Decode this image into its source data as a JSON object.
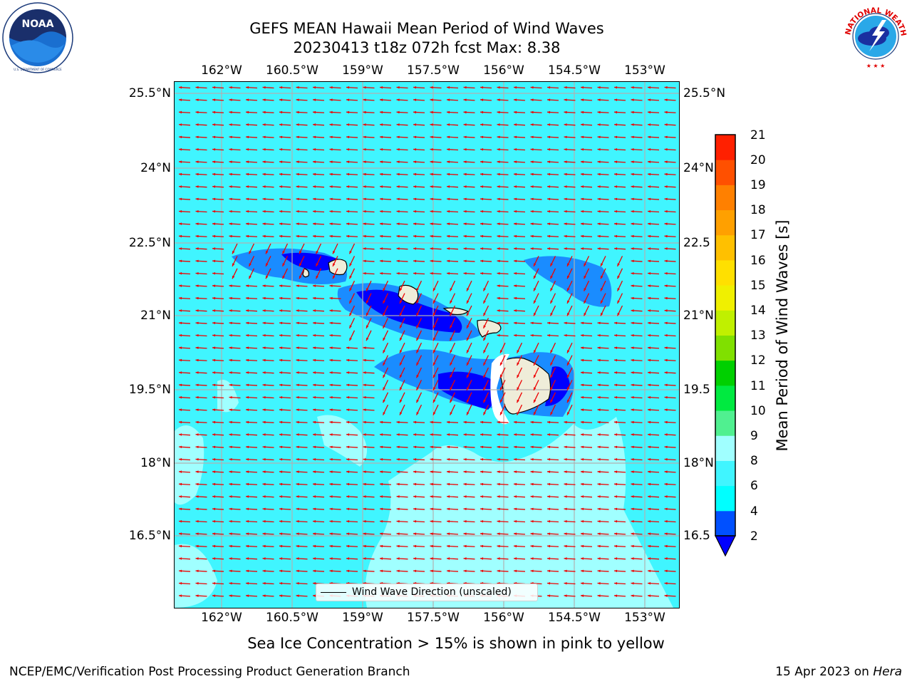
{
  "title": {
    "line1": "GEFS MEAN Hawaii Mean Period of Wind Waves",
    "line2": "20230413 t18z 072h fcst   Max: 8.38"
  },
  "logos": {
    "noaa": {
      "text": "NOAA",
      "icon": "noaa-logo-icon",
      "ring_text": "NATIONAL OCEANIC AND ATMOSPHERIC ADMINISTRATION · U.S. DEPARTMENT OF COMMERCE"
    },
    "nws": {
      "icon": "nws-logo-icon",
      "ring_text": "NATIONAL WEATHER SERVICE"
    }
  },
  "map": {
    "lon_ticks": [
      "162°W",
      "160.5°W",
      "159°W",
      "157.5°W",
      "156°W",
      "154.5°W",
      "153°W"
    ],
    "lon_values": [
      -162,
      -160.5,
      -159,
      -157.5,
      -156,
      -154.5,
      -153
    ],
    "lat_ticks_left": [
      "25.5°N",
      "24°N",
      "22.5°N",
      "21°N",
      "19.5°N",
      "18°N",
      "16.5°N"
    ],
    "lat_ticks_right": [
      "25.5°N",
      "24°N",
      "22.5",
      "21°N",
      "19.5",
      "18°N",
      "16.5"
    ],
    "lat_values": [
      25.5,
      24,
      22.5,
      21,
      19.5,
      18,
      16.5
    ],
    "extent": {
      "lon_min": -163,
      "lon_max": -152.25,
      "lat_min": 15,
      "lat_max": 25.75
    },
    "gridlines": true,
    "arrow_color": "#ee0000",
    "coast_color": "#000000",
    "land_color": "#efedd9"
  },
  "legend": {
    "label": "Wind Wave Direction (unscaled)",
    "placement": "lower-center"
  },
  "colorbar": {
    "label": "Mean Period of Wind Waves [s]",
    "ticks": [
      "21",
      "20",
      "19",
      "18",
      "17",
      "16",
      "15",
      "14",
      "13",
      "12",
      "11",
      "10",
      "9",
      "8",
      "6",
      "4",
      "2"
    ],
    "levels": [
      2,
      4,
      6,
      8,
      9,
      10,
      11,
      12,
      13,
      14,
      15,
      16,
      17,
      18,
      19,
      20,
      21
    ],
    "colors": [
      "#0050ff",
      "#00ffff",
      "#40f5ff",
      "#a0ffff",
      "#50f090",
      "#00ea40",
      "#00d000",
      "#80e000",
      "#c0f000",
      "#f0f000",
      "#ffe000",
      "#ffc000",
      "#ffa000",
      "#ff8000",
      "#ff5000",
      "#ff2000"
    ],
    "under_color": "#0000ff"
  },
  "chart_data": {
    "type": "heatmap",
    "title": "GEFS MEAN Hawaii Mean Period of Wind Waves",
    "subtitle": "20230413 t18z 072h fcst   Max: 8.38",
    "variable": "Mean Period of Wind Waves [s]",
    "max": 8.38,
    "colorbar_ticks": [
      2,
      4,
      6,
      8,
      9,
      10,
      11,
      12,
      13,
      14,
      15,
      16,
      17,
      18,
      19,
      20,
      21
    ],
    "x_ticks": [
      "162°W",
      "160.5°W",
      "159°W",
      "157.5°W",
      "156°W",
      "154.5°W",
      "153°W"
    ],
    "y_ticks": [
      "25.5°N",
      "24°N",
      "22.5°N",
      "21°N",
      "19.5°N",
      "18°N",
      "16.5°N"
    ],
    "grid": true,
    "legend": "lower-center"
  },
  "caption": "Sea Ice Concentration > 15% is shown in pink to yellow",
  "footer": {
    "left": "NCEP/EMC/Verification Post Processing Product Generation Branch",
    "right_prefix": "15 Apr 2023 on ",
    "right_host": "Hera"
  }
}
